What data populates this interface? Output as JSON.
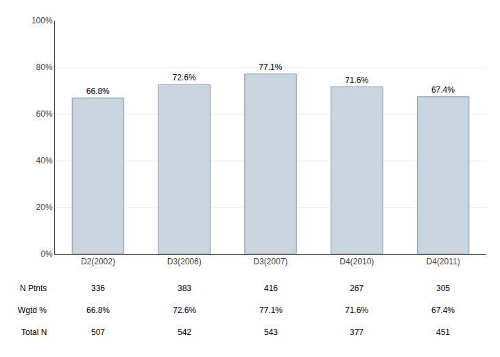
{
  "chart_data": {
    "type": "bar",
    "categories": [
      "D2(2002)",
      "D3(2006)",
      "D3(2007)",
      "D4(2010)",
      "D4(2011)"
    ],
    "values": [
      0.668,
      0.726,
      0.771,
      0.716,
      0.674
    ],
    "value_labels": [
      "66.8%",
      "72.6%",
      "77.1%",
      "71.6%",
      "67.4%"
    ],
    "data_labels": true,
    "color": "#c8d4de",
    "ylim": [
      0,
      1.0
    ],
    "yticks": [
      {
        "value": 0,
        "label": "0%"
      },
      {
        "value": 0.2,
        "label": "20%"
      },
      {
        "value": 0.4,
        "label": "40%"
      },
      {
        "value": 0.6,
        "label": "60%"
      },
      {
        "value": 0.8,
        "label": "80%"
      },
      {
        "value": 1.0,
        "label": "100%"
      }
    ],
    "grid": true,
    "table_rows": [
      {
        "name": "N Ptnts",
        "values": [
          336,
          383,
          416,
          267,
          305
        ]
      },
      {
        "name": "Wgtd %",
        "values": [
          0.668,
          0.726,
          0.771,
          0.716,
          0.674
        ],
        "value_labels": [
          "66.8%",
          "72.6%",
          "77.1%",
          "71.6%",
          "67.4%"
        ]
      },
      {
        "name": "Total N",
        "values": [
          507,
          542,
          543,
          377,
          451
        ]
      }
    ]
  }
}
